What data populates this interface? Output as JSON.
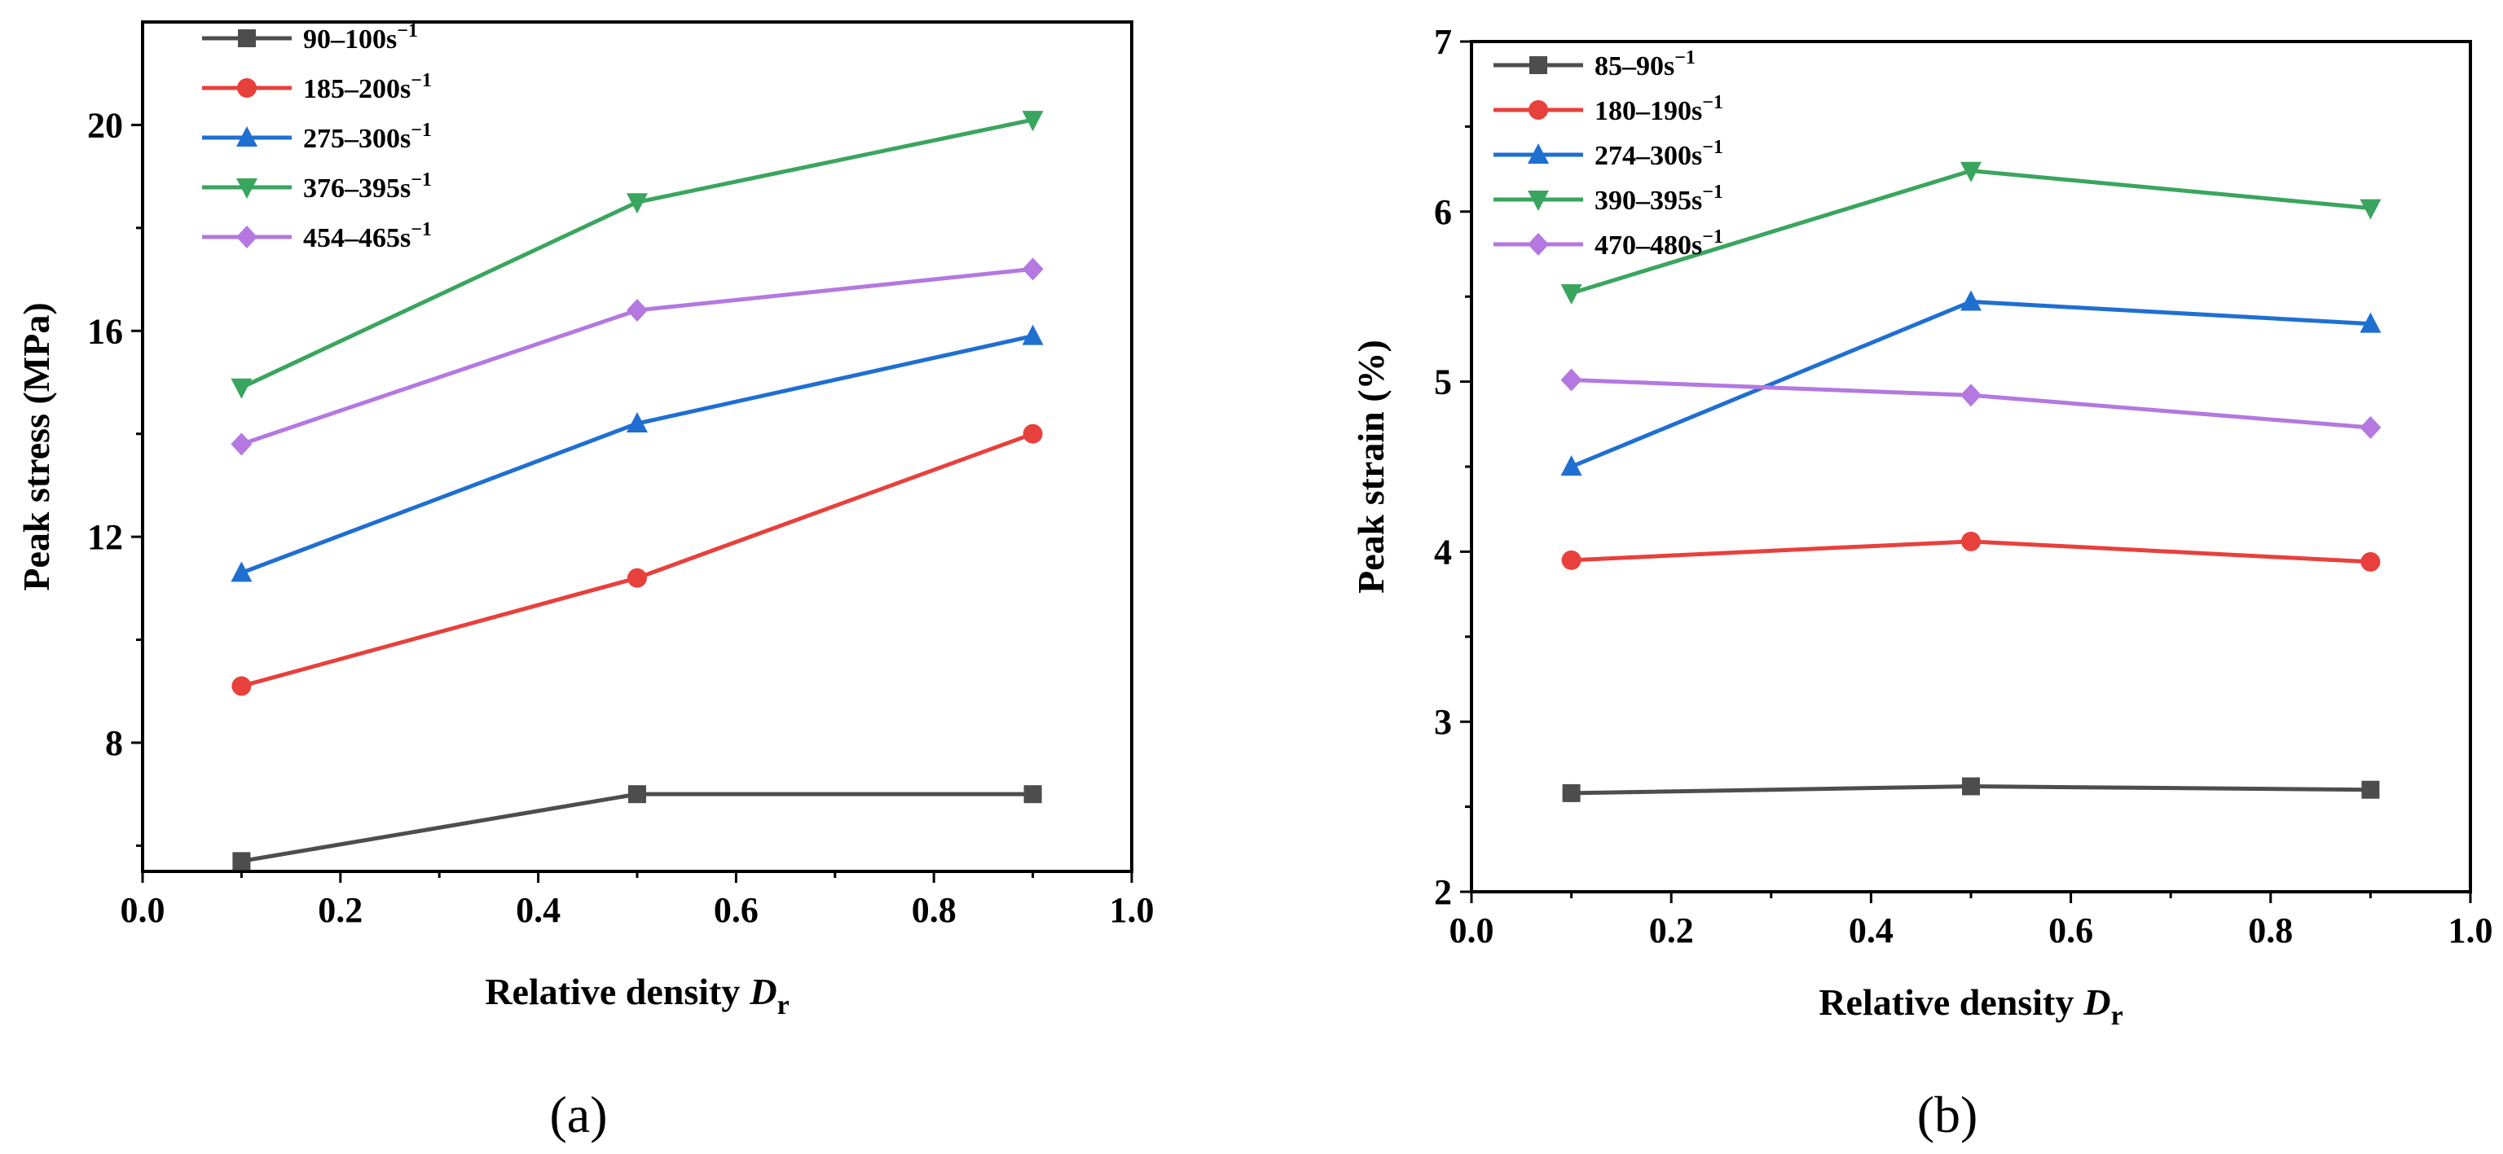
{
  "figure": {
    "panel_labels": [
      "(a)",
      "(b)"
    ]
  },
  "chart_data": [
    {
      "type": "line",
      "panel": "(a)",
      "xlabel": "Relative density",
      "xlabel_symbol": "D",
      "xlabel_subscript": "r",
      "ylabel": "Peak stress (MPa)",
      "xlim": [
        0.0,
        1.0
      ],
      "ylim": [
        5.5,
        22
      ],
      "xticks": [
        0.0,
        0.2,
        0.4,
        0.6,
        0.8,
        1.0
      ],
      "xtick_labels": [
        "0.0",
        "0.2",
        "0.4",
        "0.6",
        "0.8",
        "1.0"
      ],
      "yticks": [
        8,
        12,
        16,
        20
      ],
      "ytick_labels": [
        "8",
        "12",
        "16",
        "20"
      ],
      "legend_placement": "top-left",
      "x": [
        0.1,
        0.5,
        0.9
      ],
      "series": [
        {
          "name": "90–100s",
          "superscript": "−1",
          "color": "#4d4d4d",
          "marker": "square",
          "values": [
            5.7,
            7.0,
            7.0
          ]
        },
        {
          "name": "185–200s",
          "superscript": "−1",
          "color": "#e8403c",
          "marker": "circle",
          "values": [
            9.1,
            11.2,
            14.0
          ]
        },
        {
          "name": "275–300s",
          "superscript": "−1",
          "color": "#1f6fd1",
          "marker": "triangle-up",
          "values": [
            11.3,
            14.2,
            15.9
          ]
        },
        {
          "name": "376–395s",
          "superscript": "−1",
          "color": "#3aa55e",
          "marker": "triangle-down",
          "values": [
            14.9,
            18.5,
            20.1
          ]
        },
        {
          "name": "454–465s",
          "superscript": "−1",
          "color": "#b478e0",
          "marker": "diamond",
          "values": [
            13.8,
            16.4,
            17.2
          ]
        }
      ]
    },
    {
      "type": "line",
      "panel": "(b)",
      "xlabel": "Relative density",
      "xlabel_symbol": "D",
      "xlabel_subscript": "r",
      "ylabel": "Peak  strain (%)",
      "xlim": [
        0.0,
        1.0
      ],
      "ylim": [
        2,
        7
      ],
      "xticks": [
        0.0,
        0.2,
        0.4,
        0.6,
        0.8,
        1.0
      ],
      "xtick_labels": [
        "0.0",
        "0.2",
        "0.4",
        "0.6",
        "0.8",
        "1.0"
      ],
      "yticks": [
        2,
        3,
        4,
        5,
        6,
        7
      ],
      "ytick_labels": [
        "2",
        "3",
        "4",
        "5",
        "6",
        "7"
      ],
      "legend_placement": "top-left",
      "x": [
        0.1,
        0.5,
        0.9
      ],
      "series": [
        {
          "name": "85–90s",
          "superscript": "−1",
          "color": "#4d4d4d",
          "marker": "square",
          "values": [
            2.58,
            2.62,
            2.6
          ]
        },
        {
          "name": "180–190s",
          "superscript": "−1",
          "color": "#e8403c",
          "marker": "circle",
          "values": [
            3.95,
            4.06,
            3.94
          ]
        },
        {
          "name": "274–300s",
          "superscript": "−1",
          "color": "#1f6fd1",
          "marker": "triangle-up",
          "values": [
            4.5,
            5.47,
            5.34
          ]
        },
        {
          "name": "390–395s",
          "superscript": "−1",
          "color": "#3aa55e",
          "marker": "triangle-down",
          "values": [
            5.52,
            6.24,
            6.02
          ]
        },
        {
          "name": "470–480s",
          "superscript": "−1",
          "color": "#b478e0",
          "marker": "diamond",
          "values": [
            5.01,
            4.92,
            4.73
          ]
        }
      ]
    }
  ]
}
